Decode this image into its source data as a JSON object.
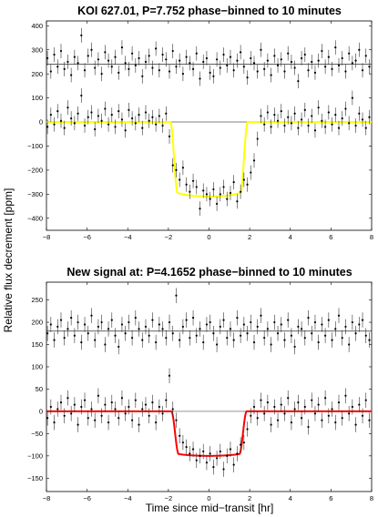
{
  "figure": {
    "ylabel": "Relative flux decrement [ppm]",
    "xlabel": "Time since mid−transit [hr]"
  },
  "chart_data": [
    {
      "type": "scatter",
      "title": "KOI 627.01, P=7.752 phase−binned to 10 minutes",
      "xlim": [
        -8,
        8
      ],
      "ylim": [
        -450,
        420
      ],
      "x_ticks": [
        "−8",
        "−6",
        "−4",
        "−2",
        "0",
        "2",
        "4",
        "6",
        "8"
      ],
      "y_ticks": [
        "400",
        "300",
        "200",
        "100",
        "0",
        "−100",
        "−200",
        "−300",
        "−400"
      ],
      "baselines": [
        240,
        0
      ],
      "model_color": "#ffff00",
      "model": {
        "depth": 310,
        "half_duration": 1.9,
        "ingress": 0.35,
        "limb_darkening": 0.12
      },
      "errorbar": 30,
      "series": [
        {
          "role": "offset-residuals",
          "offset": 240,
          "x_step": 0.1667,
          "y": [
            25,
            -30,
            40,
            -10,
            55,
            -20,
            10,
            -45,
            30,
            5,
            120,
            -25,
            35,
            60,
            -15,
            20,
            -40,
            50,
            15,
            -10,
            30,
            -35,
            70,
            5,
            -20,
            45,
            -5,
            25,
            -50,
            10,
            35,
            -15,
            65,
            -25,
            40,
            20,
            -30,
            55,
            -10,
            15,
            -40,
            30,
            5,
            -20,
            45,
            -60,
            10,
            25,
            -35,
            -50,
            20,
            -15,
            40,
            -5,
            30,
            -25,
            15,
            50,
            -10,
            -55,
            25,
            5,
            -30,
            60,
            -20,
            15,
            -45,
            35,
            -5,
            20,
            -30,
            45,
            10,
            -15,
            -70,
            25,
            40,
            -25,
            10,
            -35,
            15,
            55,
            -10,
            30,
            -20,
            70,
            -5,
            25,
            -30,
            45,
            5,
            15,
            60,
            -25,
            35,
            -10
          ]
        },
        {
          "role": "flux",
          "x_step": 0.1667,
          "y": [
            -20,
            30,
            -10,
            45,
            5,
            -25,
            60,
            15,
            -5,
            35,
            110,
            -15,
            20,
            40,
            -30,
            25,
            5,
            55,
            -10,
            30,
            -20,
            45,
            10,
            -35,
            50,
            15,
            -5,
            30,
            -25,
            40,
            5,
            20,
            -10,
            25,
            -15,
            35,
            -60,
            -180,
            -200,
            -240,
            -190,
            -260,
            -290,
            -245,
            -270,
            -360,
            -285,
            -300,
            -320,
            -280,
            -340,
            -300,
            -270,
            -320,
            -295,
            -250,
            -330,
            -290,
            -240,
            -260,
            -210,
            -160,
            -70,
            25,
            -10,
            40,
            -20,
            30,
            5,
            45,
            -15,
            20,
            -5,
            35,
            -25,
            10,
            50,
            -15,
            25,
            -35,
            60,
            5,
            -20,
            40,
            -10,
            30,
            -25,
            15,
            55,
            -5,
            100,
            -15,
            35,
            10,
            -25,
            20,
            -5
          ]
        }
      ]
    },
    {
      "type": "scatter",
      "title": "New signal at: P=4.1652 phase−binned to 10 minutes",
      "xlim": [
        -8,
        8
      ],
      "ylim": [
        -180,
        290
      ],
      "x_ticks": [
        "−8",
        "−6",
        "−4",
        "−2",
        "0",
        "2",
        "4",
        "6",
        "8"
      ],
      "y_ticks": [
        "250",
        "200",
        "150",
        "100",
        "50",
        "0",
        "−50",
        "−100",
        "−150"
      ],
      "baselines": [
        180,
        0
      ],
      "model_color": "#ff0000",
      "model": {
        "depth": 100,
        "half_duration": 1.85,
        "ingress": 0.35,
        "limb_darkening": 0.1
      },
      "errorbar": 17,
      "series": [
        {
          "role": "offset-residuals",
          "offset": 180,
          "x_step": 0.1667,
          "y": [
            -5,
            15,
            -20,
            10,
            25,
            -15,
            5,
            30,
            -10,
            20,
            -25,
            15,
            -5,
            35,
            -20,
            10,
            20,
            -30,
            5,
            25,
            -10,
            -35,
            15,
            -5,
            20,
            -15,
            30,
            5,
            -20,
            10,
            -10,
            25,
            -25,
            15,
            5,
            -15,
            20,
            -5,
            80,
            -20,
            10,
            25,
            -15,
            30,
            -10,
            5,
            -25,
            15,
            20,
            -5,
            -30,
            10,
            25,
            -15,
            5,
            -20,
            30,
            -10,
            15,
            -5,
            20,
            -25,
            10,
            35,
            -15,
            5,
            -30,
            20,
            -5,
            15,
            -20,
            25,
            -10,
            -35,
            10,
            5,
            -15,
            30,
            -5,
            20,
            -25,
            15,
            -10,
            25,
            -20,
            5,
            35,
            -15,
            10,
            -30,
            20,
            -5,
            15,
            25,
            -10,
            -20,
            5
          ]
        },
        {
          "role": "flux",
          "x_step": 0.1667,
          "y": [
            -15,
            10,
            -25,
            5,
            20,
            -10,
            30,
            -5,
            15,
            -30,
            10,
            25,
            -15,
            5,
            -20,
            35,
            -10,
            15,
            -25,
            20,
            5,
            -15,
            30,
            -5,
            10,
            -20,
            25,
            -30,
            5,
            15,
            -10,
            20,
            -25,
            10,
            -5,
            25,
            80,
            5,
            -20,
            -55,
            -70,
            -80,
            -95,
            -85,
            -110,
            -100,
            -90,
            -115,
            -95,
            -125,
            -105,
            -90,
            -130,
            -100,
            -85,
            -120,
            -95,
            -75,
            -70,
            -40,
            -10,
            10,
            -15,
            25,
            -5,
            20,
            -30,
            10,
            -20,
            15,
            -5,
            30,
            -25,
            5,
            20,
            -15,
            10,
            -35,
            25,
            -5,
            15,
            -20,
            30,
            -10,
            5,
            -25,
            20,
            -15,
            35,
            -5,
            10,
            -30,
            15,
            -10,
            25,
            -20,
            5
          ]
        }
      ]
    }
  ]
}
